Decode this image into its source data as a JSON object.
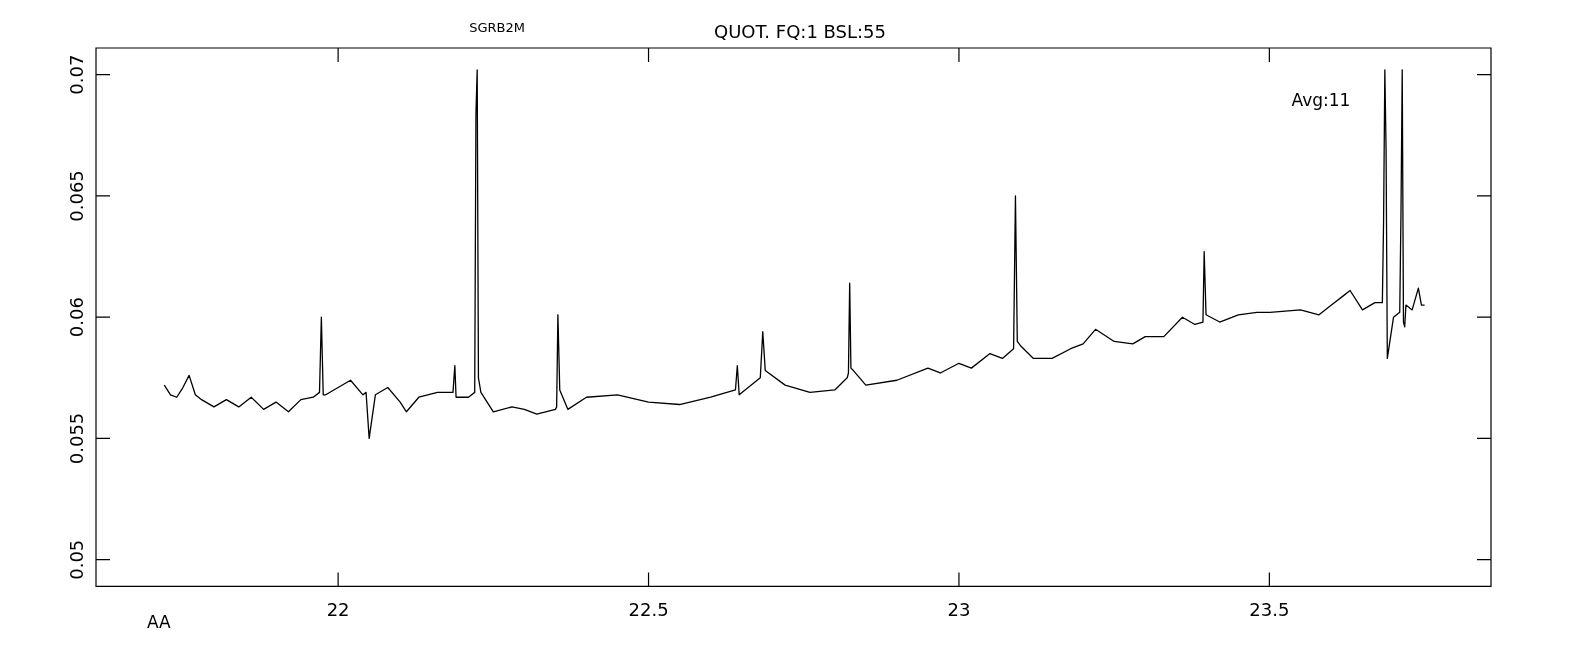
{
  "chart_data": {
    "type": "line",
    "title": "QUOT. FQ:1 BSL:55",
    "subtitle": "SGRB2M",
    "xlabel": "AA",
    "annotations": [
      "Avg:11"
    ],
    "x": [
      21.72,
      21.73,
      21.74,
      21.75,
      21.76,
      21.77,
      21.78,
      21.8,
      21.82,
      21.84,
      21.86,
      21.88,
      21.9,
      21.92,
      21.94,
      21.96,
      21.97,
      21.973,
      21.976,
      21.98,
      22.0,
      22.02,
      22.04,
      22.045,
      22.05,
      22.06,
      22.08,
      22.1,
      22.11,
      22.13,
      22.16,
      22.185,
      22.188,
      22.19,
      22.21,
      22.22,
      22.222,
      22.224,
      22.226,
      22.23,
      22.24,
      22.25,
      22.28,
      22.3,
      22.32,
      22.35,
      22.352,
      22.354,
      22.357,
      22.37,
      22.4,
      22.45,
      22.5,
      22.55,
      22.6,
      22.64,
      22.643,
      22.646,
      22.68,
      22.684,
      22.688,
      22.72,
      22.76,
      22.8,
      22.82,
      22.822,
      22.824,
      22.826,
      22.83,
      22.85,
      22.9,
      22.95,
      22.97,
      23.0,
      23.02,
      23.05,
      23.07,
      23.088,
      23.091,
      23.094,
      23.1,
      23.12,
      23.15,
      23.18,
      23.2,
      23.22,
      23.25,
      23.28,
      23.3,
      23.33,
      23.36,
      23.38,
      23.393,
      23.395,
      23.398,
      23.42,
      23.45,
      23.48,
      23.5,
      23.55,
      23.58,
      23.6,
      23.62,
      23.63,
      23.65,
      23.67,
      23.682,
      23.684,
      23.686,
      23.688,
      23.69,
      23.7,
      23.71,
      23.712,
      23.714,
      23.716,
      23.718,
      23.72,
      23.73,
      23.74,
      23.745,
      23.75
    ],
    "series": [
      {
        "color": "#000000",
        "values": [
          0.0572,
          0.0568,
          0.0567,
          0.0571,
          0.0576,
          0.0568,
          0.0566,
          0.0563,
          0.0566,
          0.0563,
          0.0567,
          0.0562,
          0.0565,
          0.0561,
          0.0566,
          0.0567,
          0.0569,
          0.06,
          0.0568,
          0.0568,
          0.0571,
          0.0574,
          0.0568,
          0.0569,
          0.055,
          0.0568,
          0.0571,
          0.0565,
          0.0561,
          0.0567,
          0.0569,
          0.0569,
          0.058,
          0.0567,
          0.0567,
          0.0569,
          0.0684,
          0.0702,
          0.0575,
          0.0569,
          0.0565,
          0.0561,
          0.0563,
          0.0562,
          0.056,
          0.0562,
          0.0563,
          0.0601,
          0.057,
          0.0562,
          0.0567,
          0.0568,
          0.0565,
          0.0564,
          0.0567,
          0.057,
          0.058,
          0.0568,
          0.0575,
          0.0594,
          0.0578,
          0.0572,
          0.0569,
          0.057,
          0.0575,
          0.0577,
          0.0614,
          0.0579,
          0.0578,
          0.0572,
          0.0574,
          0.0579,
          0.0577,
          0.0581,
          0.0579,
          0.0585,
          0.0583,
          0.0587,
          0.065,
          0.059,
          0.0588,
          0.0583,
          0.0583,
          0.0587,
          0.0589,
          0.0595,
          0.059,
          0.0589,
          0.0592,
          0.0592,
          0.06,
          0.0597,
          0.0598,
          0.0627,
          0.0601,
          0.0598,
          0.0601,
          0.0602,
          0.0602,
          0.0603,
          0.0601,
          0.0605,
          0.0609,
          0.0611,
          0.0603,
          0.0606,
          0.0606,
          0.064,
          0.0702,
          0.0669,
          0.0583,
          0.06,
          0.0602,
          0.0643,
          0.0702,
          0.0598,
          0.0596,
          0.0605,
          0.0603,
          0.0612,
          0.0605,
          0.0605
        ]
      }
    ],
    "xlim": [
      21.61,
      23.857
    ],
    "xticks": [
      22,
      22.5,
      23,
      23.5
    ],
    "ylim": [
      0.0489,
      0.0711
    ],
    "yticks": [
      0.05,
      0.055,
      0.06,
      0.065,
      0.07
    ],
    "grid": false,
    "legend": false,
    "marker": "none",
    "line_style": "solid"
  }
}
